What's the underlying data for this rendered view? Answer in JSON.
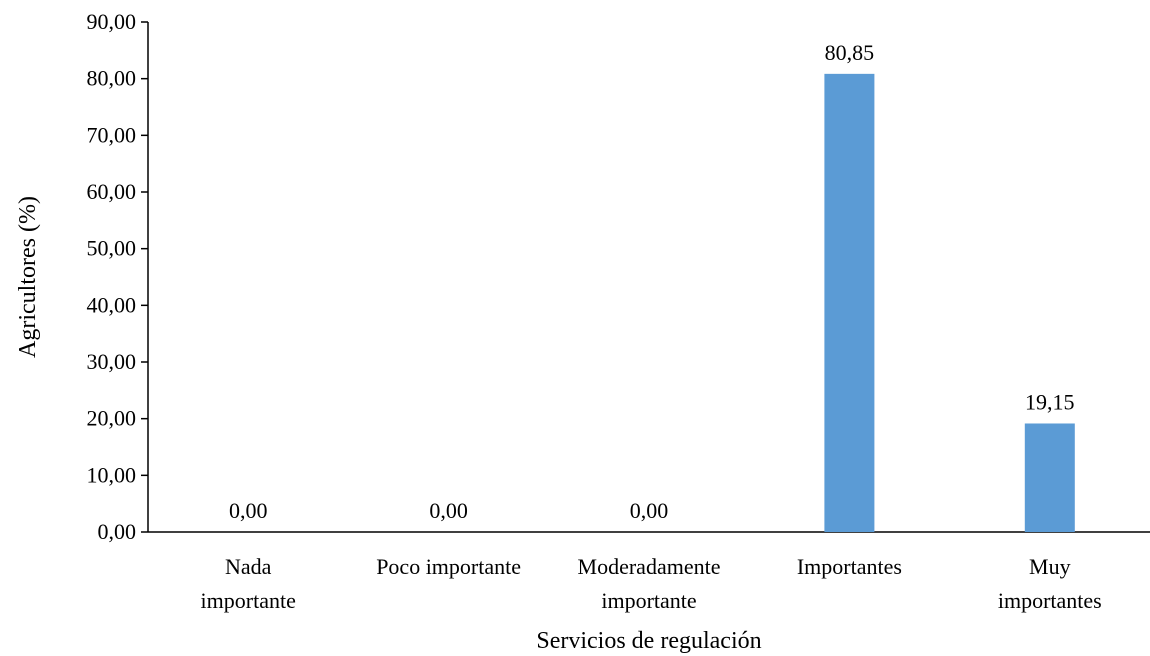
{
  "chart_data": {
    "type": "bar",
    "categories": [
      [
        "Nada",
        "importante"
      ],
      [
        "Poco importante"
      ],
      [
        "Moderadamente",
        "importante"
      ],
      [
        "Importantes"
      ],
      [
        "Muy",
        "importantes"
      ]
    ],
    "values": [
      0.0,
      0.0,
      0.0,
      80.85,
      19.15
    ],
    "data_labels": [
      "0,00",
      "0,00",
      "0,00",
      "80,85",
      "19,15"
    ],
    "title": "",
    "xlabel": "Servicios de regulación",
    "ylabel": "Agricultores (%)",
    "ylim": [
      0,
      90
    ],
    "y_ticks": [
      0,
      10,
      20,
      30,
      40,
      50,
      60,
      70,
      80,
      90
    ],
    "y_tick_labels": [
      "0,00",
      "10,00",
      "20,00",
      "30,00",
      "40,00",
      "50,00",
      "60,00",
      "70,00",
      "80,00",
      "90,00"
    ],
    "grid": false,
    "legend": "none",
    "bar_color": "#5b9bd5"
  }
}
